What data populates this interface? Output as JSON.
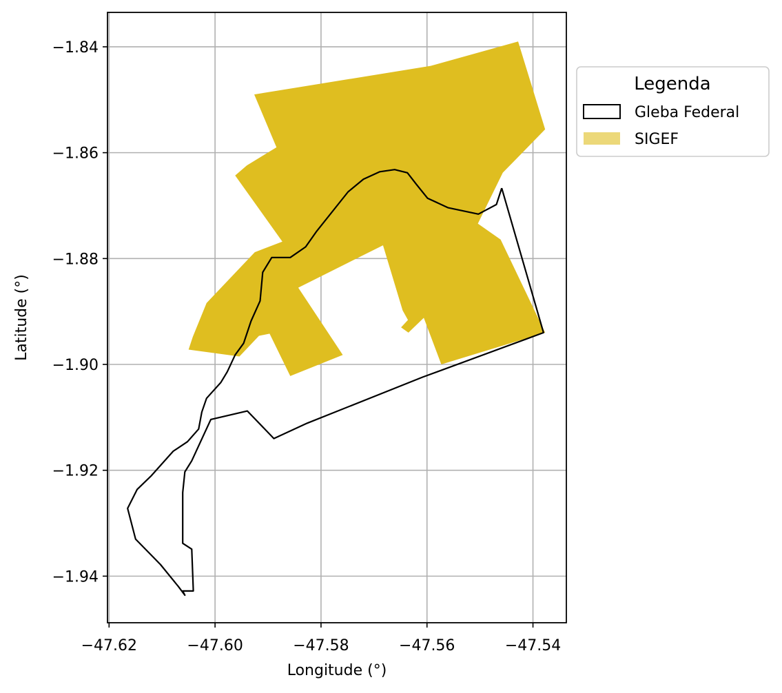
{
  "chart_data": {
    "type": "map",
    "xlabel": "Longitude (°)",
    "ylabel": "Latitude (°)",
    "xlim": [
      -47.6203,
      -47.5337
    ],
    "ylim": [
      -1.9488,
      -1.8335
    ],
    "x_ticks": [
      -47.62,
      -47.6,
      -47.58,
      -47.56,
      -47.54
    ],
    "x_tick_labels": [
      "−47.62",
      "−47.60",
      "−47.58",
      "−47.56",
      "−47.54"
    ],
    "y_ticks": [
      -1.84,
      -1.86,
      -1.88,
      -1.9,
      -1.92,
      -1.94
    ],
    "y_tick_labels": [
      "−1.84",
      "−1.86",
      "−1.88",
      "−1.90",
      "−1.92",
      "−1.94"
    ],
    "grid": true,
    "legend": {
      "title": "Legenda",
      "placement": "outside-upper-right",
      "entries": [
        {
          "label": "Gleba Federal",
          "style": "outline",
          "color": "#000000"
        },
        {
          "label": "SIGEF",
          "style": "fill",
          "color": "#dfbe20",
          "alpha": 0.6
        }
      ]
    },
    "series": [
      {
        "name": "SIGEF",
        "type": "polygon",
        "fill": "#dfbe20",
        "coords": [
          [
            -47.5926,
            -1.849
          ],
          [
            -47.5593,
            -1.8436
          ],
          [
            -47.5428,
            -1.839
          ],
          [
            -47.5377,
            -1.8556
          ],
          [
            -47.5457,
            -1.8638
          ],
          [
            -47.5504,
            -1.8734
          ],
          [
            -47.5461,
            -1.8764
          ],
          [
            -47.5377,
            -1.894
          ],
          [
            -47.5573,
            -1.9
          ],
          [
            -47.5606,
            -1.8912
          ],
          [
            -47.5635,
            -1.894
          ],
          [
            -47.5649,
            -1.893
          ],
          [
            -47.5636,
            -1.8916
          ],
          [
            -47.5646,
            -1.8898
          ],
          [
            -47.5683,
            -1.8775
          ],
          [
            -47.5843,
            -1.8855
          ],
          [
            -47.5759,
            -1.8982
          ],
          [
            -47.5858,
            -1.9022
          ],
          [
            -47.5897,
            -1.8942
          ],
          [
            -47.5917,
            -1.8946
          ],
          [
            -47.5954,
            -1.8985
          ],
          [
            -47.605,
            -1.8972
          ],
          [
            -47.6042,
            -1.8948
          ],
          [
            -47.6016,
            -1.8884
          ],
          [
            -47.5925,
            -1.8788
          ],
          [
            -47.5873,
            -1.8768
          ],
          [
            -47.5962,
            -1.8643
          ],
          [
            -47.594,
            -1.8624
          ],
          [
            -47.5884,
            -1.859
          ],
          [
            -47.5926,
            -1.849
          ]
        ]
      },
      {
        "name": "Gleba Federal",
        "type": "polygon-outline",
        "stroke": "#000000",
        "coords": [
          [
            -47.5459,
            -1.8667
          ],
          [
            -47.538,
            -1.894
          ],
          [
            -47.5608,
            -1.9024
          ],
          [
            -47.5826,
            -1.9111
          ],
          [
            -47.5889,
            -1.914
          ],
          [
            -47.5939,
            -1.9088
          ],
          [
            -47.6008,
            -1.9104
          ],
          [
            -47.6044,
            -1.9182
          ],
          [
            -47.6057,
            -1.9203
          ],
          [
            -47.6061,
            -1.9242
          ],
          [
            -47.6061,
            -1.9338
          ],
          [
            -47.6044,
            -1.9349
          ],
          [
            -47.6041,
            -1.9428
          ],
          [
            -47.6061,
            -1.9428
          ],
          [
            -47.6057,
            -1.9436
          ],
          [
            -47.6069,
            -1.942
          ],
          [
            -47.6103,
            -1.9378
          ],
          [
            -47.615,
            -1.933
          ],
          [
            -47.6165,
            -1.9272
          ],
          [
            -47.6147,
            -1.9236
          ],
          [
            -47.612,
            -1.921
          ],
          [
            -47.6079,
            -1.9164
          ],
          [
            -47.6052,
            -1.9146
          ],
          [
            -47.6031,
            -1.9122
          ],
          [
            -47.6025,
            -1.909
          ],
          [
            -47.6016,
            -1.9064
          ],
          [
            -47.5989,
            -1.9034
          ],
          [
            -47.5977,
            -1.9014
          ],
          [
            -47.5962,
            -1.8982
          ],
          [
            -47.5946,
            -1.896
          ],
          [
            -47.5932,
            -1.8918
          ],
          [
            -47.5915,
            -1.888
          ],
          [
            -47.591,
            -1.8826
          ],
          [
            -47.5893,
            -1.8798
          ],
          [
            -47.5858,
            -1.8798
          ],
          [
            -47.5829,
            -1.8778
          ],
          [
            -47.5808,
            -1.8748
          ],
          [
            -47.5749,
            -1.8674
          ],
          [
            -47.572,
            -1.865
          ],
          [
            -47.5689,
            -1.8636
          ],
          [
            -47.5661,
            -1.8632
          ],
          [
            -47.5637,
            -1.8638
          ],
          [
            -47.562,
            -1.866
          ],
          [
            -47.5599,
            -1.8686
          ],
          [
            -47.556,
            -1.8704
          ],
          [
            -47.5503,
            -1.8716
          ],
          [
            -47.5469,
            -1.8698
          ],
          [
            -47.5459,
            -1.8667
          ]
        ]
      }
    ]
  }
}
